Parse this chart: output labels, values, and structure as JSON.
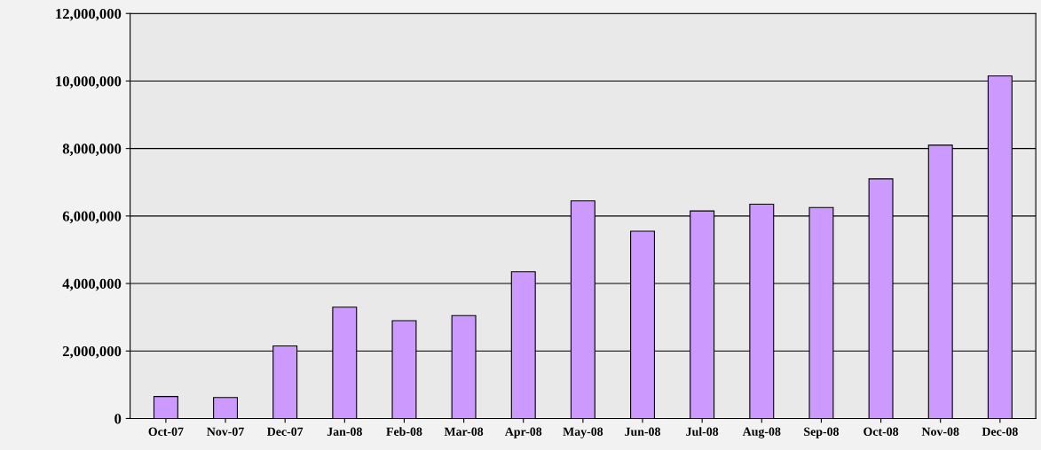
{
  "chart_data": {
    "type": "bar",
    "categories": [
      "Oct-07",
      "Nov-07",
      "Dec-07",
      "Jan-08",
      "Feb-08",
      "Mar-08",
      "Apr-08",
      "May-08",
      "Jun-08",
      "Jul-08",
      "Aug-08",
      "Sep-08",
      "Oct-08",
      "Nov-08",
      "Dec-08"
    ],
    "values": [
      650000,
      620000,
      2150000,
      3300000,
      2900000,
      3050000,
      4350000,
      6450000,
      5550000,
      6150000,
      6350000,
      6250000,
      7100000,
      8100000,
      10150000
    ],
    "color": "#cc99ff",
    "ylim": [
      0,
      12000000
    ],
    "yticks": [
      {
        "value": 0,
        "label": "0"
      },
      {
        "value": 2000000,
        "label": "2,000,000"
      },
      {
        "value": 4000000,
        "label": "4,000,000"
      },
      {
        "value": 6000000,
        "label": "6,000,000"
      },
      {
        "value": 8000000,
        "label": "8,000,000"
      },
      {
        "value": 10000000,
        "label": "10,000,000"
      },
      {
        "value": 12000000,
        "label": "12,000,000"
      }
    ],
    "grid": "y"
  }
}
